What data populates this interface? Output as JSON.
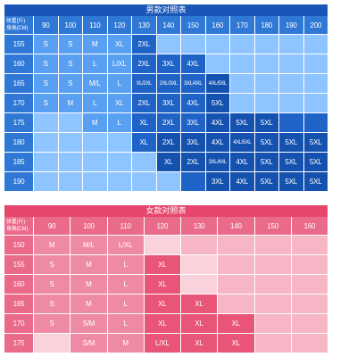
{
  "men": {
    "title": "男款对照表",
    "corner": {
      "weight_label": "体重(斤)",
      "height_label": "身高(CM)"
    },
    "weights": [
      "90",
      "100",
      "110",
      "120",
      "130",
      "140",
      "150",
      "160",
      "170",
      "180",
      "190",
      "200"
    ],
    "rows": [
      {
        "height": "155",
        "cells": [
          "S",
          "S",
          "M",
          "XL",
          "2XL",
          "",
          "",
          "",
          "",
          "",
          "",
          ""
        ]
      },
      {
        "height": "160",
        "cells": [
          "S",
          "S",
          "L",
          "L/XL",
          "2XL",
          "3XL",
          "4XL",
          "",
          "",
          "",
          "",
          ""
        ]
      },
      {
        "height": "165",
        "cells": [
          "S",
          "S",
          "M/L",
          "L",
          "XL/2XL",
          "2XL/3XL",
          "3XL/4XL",
          "4XL/5XL",
          "",
          "",
          "",
          ""
        ]
      },
      {
        "height": "170",
        "cells": [
          "S",
          "M",
          "L",
          "XL",
          "2XL",
          "3XL",
          "4XL",
          "5XL",
          "",
          "",
          "",
          ""
        ]
      },
      {
        "height": "175",
        "cells": [
          "",
          "",
          "M",
          "L",
          "XL",
          "2XL",
          "3XL",
          "4XL",
          "5XL",
          "5XL",
          "",
          ""
        ]
      },
      {
        "height": "180",
        "cells": [
          "",
          "",
          "",
          "",
          "XL",
          "2XL",
          "3XL",
          "4XL",
          "4XL/5XL",
          "5XL",
          "5XL",
          "5XL"
        ]
      },
      {
        "height": "185",
        "cells": [
          "",
          "",
          "",
          "",
          "",
          "XL",
          "2XL",
          "3XL/4XL",
          "4XL",
          "5XL",
          "5XL",
          "5XL"
        ]
      },
      {
        "height": "190",
        "cells": [
          "",
          "",
          "",
          "",
          "",
          "",
          "",
          "3XL",
          "4XL",
          "5XL",
          "5XL",
          "5XL"
        ]
      }
    ],
    "colors": {
      "title_bg": "#1a56b8",
      "header_bg": "#2f78d6",
      "light": "#8ec4ff",
      "mid": "#5aa0f2",
      "dark": "#1f63c7",
      "darker": "#1552b0"
    }
  },
  "women": {
    "title": "女款对照表",
    "corner": {
      "weight_label": "体重(斤)",
      "height_label": "身高(CM)"
    },
    "weights": [
      "90",
      "100",
      "110",
      "120",
      "130",
      "140",
      "150",
      "160"
    ],
    "rows": [
      {
        "height": "150",
        "cells": [
          "M",
          "M/L",
          "L/XL",
          "",
          "",
          "",
          "",
          ""
        ]
      },
      {
        "height": "155",
        "cells": [
          "S",
          "M",
          "L",
          "XL",
          "",
          "",
          "",
          ""
        ]
      },
      {
        "height": "160",
        "cells": [
          "S",
          "M",
          "L",
          "XL",
          "",
          "",
          "",
          ""
        ]
      },
      {
        "height": "165",
        "cells": [
          "S",
          "M",
          "L",
          "XL",
          "XL",
          "",
          "",
          ""
        ]
      },
      {
        "height": "170",
        "cells": [
          "S",
          "S/M",
          "L",
          "XL",
          "XL",
          "XL",
          "",
          ""
        ]
      },
      {
        "height": "175",
        "cells": [
          "",
          "S/M",
          "M",
          "L/XL",
          "XL",
          "XL",
          "",
          ""
        ]
      }
    ],
    "colors": {
      "title_bg": "#e6456c",
      "header_bg": "#ea6a8a",
      "light": "#f6b6c6",
      "mid": "#ef8aa4",
      "dark": "#e85577",
      "pale": "#fad2dc"
    }
  }
}
